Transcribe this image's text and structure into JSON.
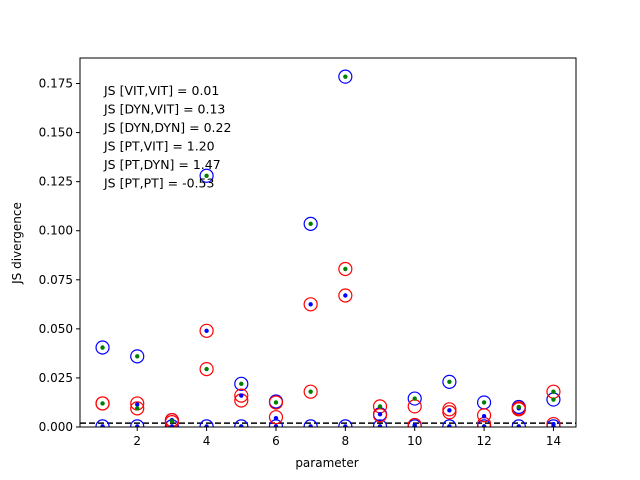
{
  "chart_data": {
    "type": "scatter",
    "xlabel": "parameter",
    "ylabel": "JS divergence",
    "xlim": [
      0.35,
      14.65
    ],
    "ylim": [
      0.0,
      0.188
    ],
    "xticks": [
      2,
      4,
      6,
      8,
      10,
      12,
      14
    ],
    "yticks": [
      0.0,
      0.025,
      0.05,
      0.075,
      0.1,
      0.125,
      0.15,
      0.175
    ],
    "ytick_labels": [
      "0.000",
      "0.025",
      "0.050",
      "0.075",
      "0.100",
      "0.125",
      "0.150",
      "0.175"
    ],
    "grid": false,
    "annotations": [
      "JS [VIT,VIT] = 0.01",
      "JS [DYN,VIT] = 0.13",
      "JS [DYN,DYN] = 0.22",
      "JS [PT,VIT] = 1.20",
      "JS [PT,DYN] = 1.47",
      "JS [PT,PT] = -0.53"
    ],
    "reference_line": {
      "y": 0.002,
      "style": "dashed",
      "color": "#000000"
    },
    "series": [
      {
        "marker": "open-circle",
        "color": "#0000ff",
        "x": [
          1,
          2,
          3,
          4,
          5,
          6,
          7,
          8,
          9,
          10,
          11,
          12,
          13,
          14
        ],
        "y": [
          0.0405,
          0.036,
          0.0035,
          0.128,
          0.022,
          0.013,
          0.1035,
          0.1785,
          0.0065,
          0.0145,
          0.023,
          0.0125,
          0.0102,
          0.014
        ]
      },
      {
        "marker": "open-circle",
        "color": "#0000ff",
        "x": [
          1,
          2,
          3,
          4,
          5,
          6,
          7,
          8,
          9,
          10,
          11,
          12,
          13,
          14
        ],
        "y": [
          0.0003,
          0.0003,
          0.0003,
          0.0003,
          0.0003,
          0.0003,
          0.0003,
          0.0003,
          0.0003,
          0.0003,
          0.0003,
          0.0003,
          0.0003,
          0.0003
        ]
      },
      {
        "marker": "open-circle",
        "color": "#ff0000",
        "x": [
          1,
          2,
          3,
          4,
          5,
          6,
          7,
          8,
          9,
          10,
          11,
          12,
          13,
          14
        ],
        "y": [
          0.012,
          0.012,
          0.0035,
          0.049,
          0.016,
          0.0125,
          0.0625,
          0.067,
          0.0105,
          0.0105,
          0.009,
          0.006,
          0.009,
          0.018
        ]
      },
      {
        "marker": "open-circle",
        "color": "#ff0000",
        "x": [
          1,
          2,
          3,
          4,
          5,
          6,
          7,
          8,
          9,
          10,
          11,
          12,
          13,
          14
        ],
        "y": [
          0.012,
          0.0095,
          0.0025,
          0.0295,
          0.0135,
          0.005,
          0.018,
          0.0805,
          0.006,
          0.001,
          0.0075,
          0.0015,
          0.0095,
          0.0015
        ]
      },
      {
        "marker": "dot",
        "color": "#0000ff",
        "x": [
          1,
          2,
          3,
          4,
          5,
          6,
          7,
          8,
          9,
          10,
          11,
          12,
          13,
          14
        ],
        "y": [
          0.0003,
          0.0115,
          0.0035,
          0.049,
          0.016,
          0.0045,
          0.0625,
          0.067,
          0.0065,
          0.001,
          0.0085,
          0.0055,
          0.0095,
          0.0015
        ]
      },
      {
        "marker": "dot",
        "color": "#008000",
        "x": [
          1,
          2,
          3,
          4,
          5,
          6,
          7,
          8,
          9,
          10,
          11,
          12,
          13,
          14
        ],
        "y": [
          0.012,
          0.0095,
          0.003,
          0.0295,
          0.022,
          0.0125,
          0.018,
          0.0805,
          0.0105,
          0.0145,
          0.023,
          0.0125,
          0.0102,
          0.014
        ]
      },
      {
        "marker": "dot",
        "color": "#008000",
        "x": [
          1,
          2,
          3,
          4,
          5,
          6,
          7,
          8,
          9,
          10,
          11,
          12,
          13,
          14
        ],
        "y": [
          0.0405,
          0.036,
          0.0003,
          0.128,
          0.0003,
          0.0003,
          0.1035,
          0.1785,
          0.0003,
          0.0003,
          0.0003,
          0.0003,
          0.0003,
          0.018
        ]
      },
      {
        "marker": "dot",
        "color": "#0000ff",
        "x": [
          1,
          2,
          3,
          4,
          5,
          6,
          7,
          8,
          9,
          10,
          11,
          12,
          13,
          14
        ],
        "y": [
          0.0003,
          0.0003,
          0.0003,
          0.0003,
          0.0003,
          0.0003,
          0.0003,
          0.0003,
          0.0003,
          0.0003,
          0.0003,
          0.0003,
          0.0003,
          0.0003
        ]
      }
    ]
  }
}
